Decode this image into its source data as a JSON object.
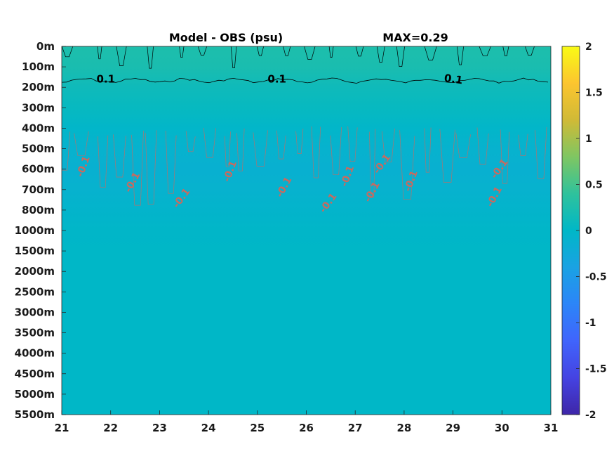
{
  "chart_data": {
    "type": "heatmap",
    "title": "Model - OBS (psu)",
    "max_label": "MAX=0.29",
    "x_ticks": [
      "21",
      "22",
      "23",
      "24",
      "25",
      "26",
      "27",
      "28",
      "29",
      "30",
      "31"
    ],
    "xlim": [
      21,
      31
    ],
    "y_ticks": [
      "0m",
      "100m",
      "200m",
      "300m",
      "400m",
      "500m",
      "600m",
      "700m",
      "800m",
      "1000m",
      "1500m",
      "2000m",
      "2500m",
      "3000m",
      "3500m",
      "4000m",
      "4500m",
      "5000m",
      "5500m"
    ],
    "colorbar": {
      "ticks": [
        "2",
        "1.5",
        "1",
        "0.5",
        "0",
        "-0.5",
        "-1",
        "-1.5",
        "-2"
      ],
      "clim": [
        -2,
        2
      ],
      "colormap": "parula"
    },
    "depth_profile": [
      {
        "depth": "0m",
        "value": 0.2
      },
      {
        "depth": "100m",
        "value": 0.18
      },
      {
        "depth": "200m",
        "value": 0.1
      },
      {
        "depth": "300m",
        "value": 0.05
      },
      {
        "depth": "400m",
        "value": -0.02
      },
      {
        "depth": "500m",
        "value": -0.08
      },
      {
        "depth": "600m",
        "value": -0.1
      },
      {
        "depth": "700m",
        "value": -0.08
      },
      {
        "depth": "800m",
        "value": -0.04
      },
      {
        "depth": "1000m",
        "value": -0.01
      },
      {
        "depth": "1500m",
        "value": 0
      },
      {
        "depth": "5500m",
        "value": 0
      }
    ],
    "contour_labels": [
      {
        "text": "0.1",
        "level": 0.1,
        "x": 21.9
      },
      {
        "text": "0.1",
        "level": 0.1,
        "x": 25.4
      },
      {
        "text": "0.1",
        "level": 0.1,
        "x": 29.0
      },
      {
        "text": "-0.1",
        "level": -0.1,
        "x": 21.5
      },
      {
        "text": "-0.1",
        "level": -0.1,
        "x": 22.5
      },
      {
        "text": "-0.1",
        "level": -0.1,
        "x": 23.5
      },
      {
        "text": "-0.1",
        "level": -0.1,
        "x": 24.5
      },
      {
        "text": "-0.1",
        "level": -0.1,
        "x": 25.6
      },
      {
        "text": "-0.1",
        "level": -0.1,
        "x": 26.5
      },
      {
        "text": "-0.1",
        "level": -0.1,
        "x": 26.9
      },
      {
        "text": "-0.1",
        "level": -0.1,
        "x": 27.4
      },
      {
        "text": "-0.1",
        "level": -0.1,
        "x": 27.6
      },
      {
        "text": "-0.1",
        "level": -0.1,
        "x": 28.2
      },
      {
        "text": "-0.1",
        "level": -0.1,
        "x": 29.9
      },
      {
        "text": "-0.1",
        "level": -0.1,
        "x": 30.0
      }
    ],
    "colors": {
      "surface": "#30bf8f",
      "band_200m": "#1fbca0",
      "mid": "#14bbac",
      "negative_core": "#00b4c0",
      "deep": "#0fb9b1",
      "positive_contour": "#000000",
      "negative_contour": "#c96a5f"
    }
  }
}
